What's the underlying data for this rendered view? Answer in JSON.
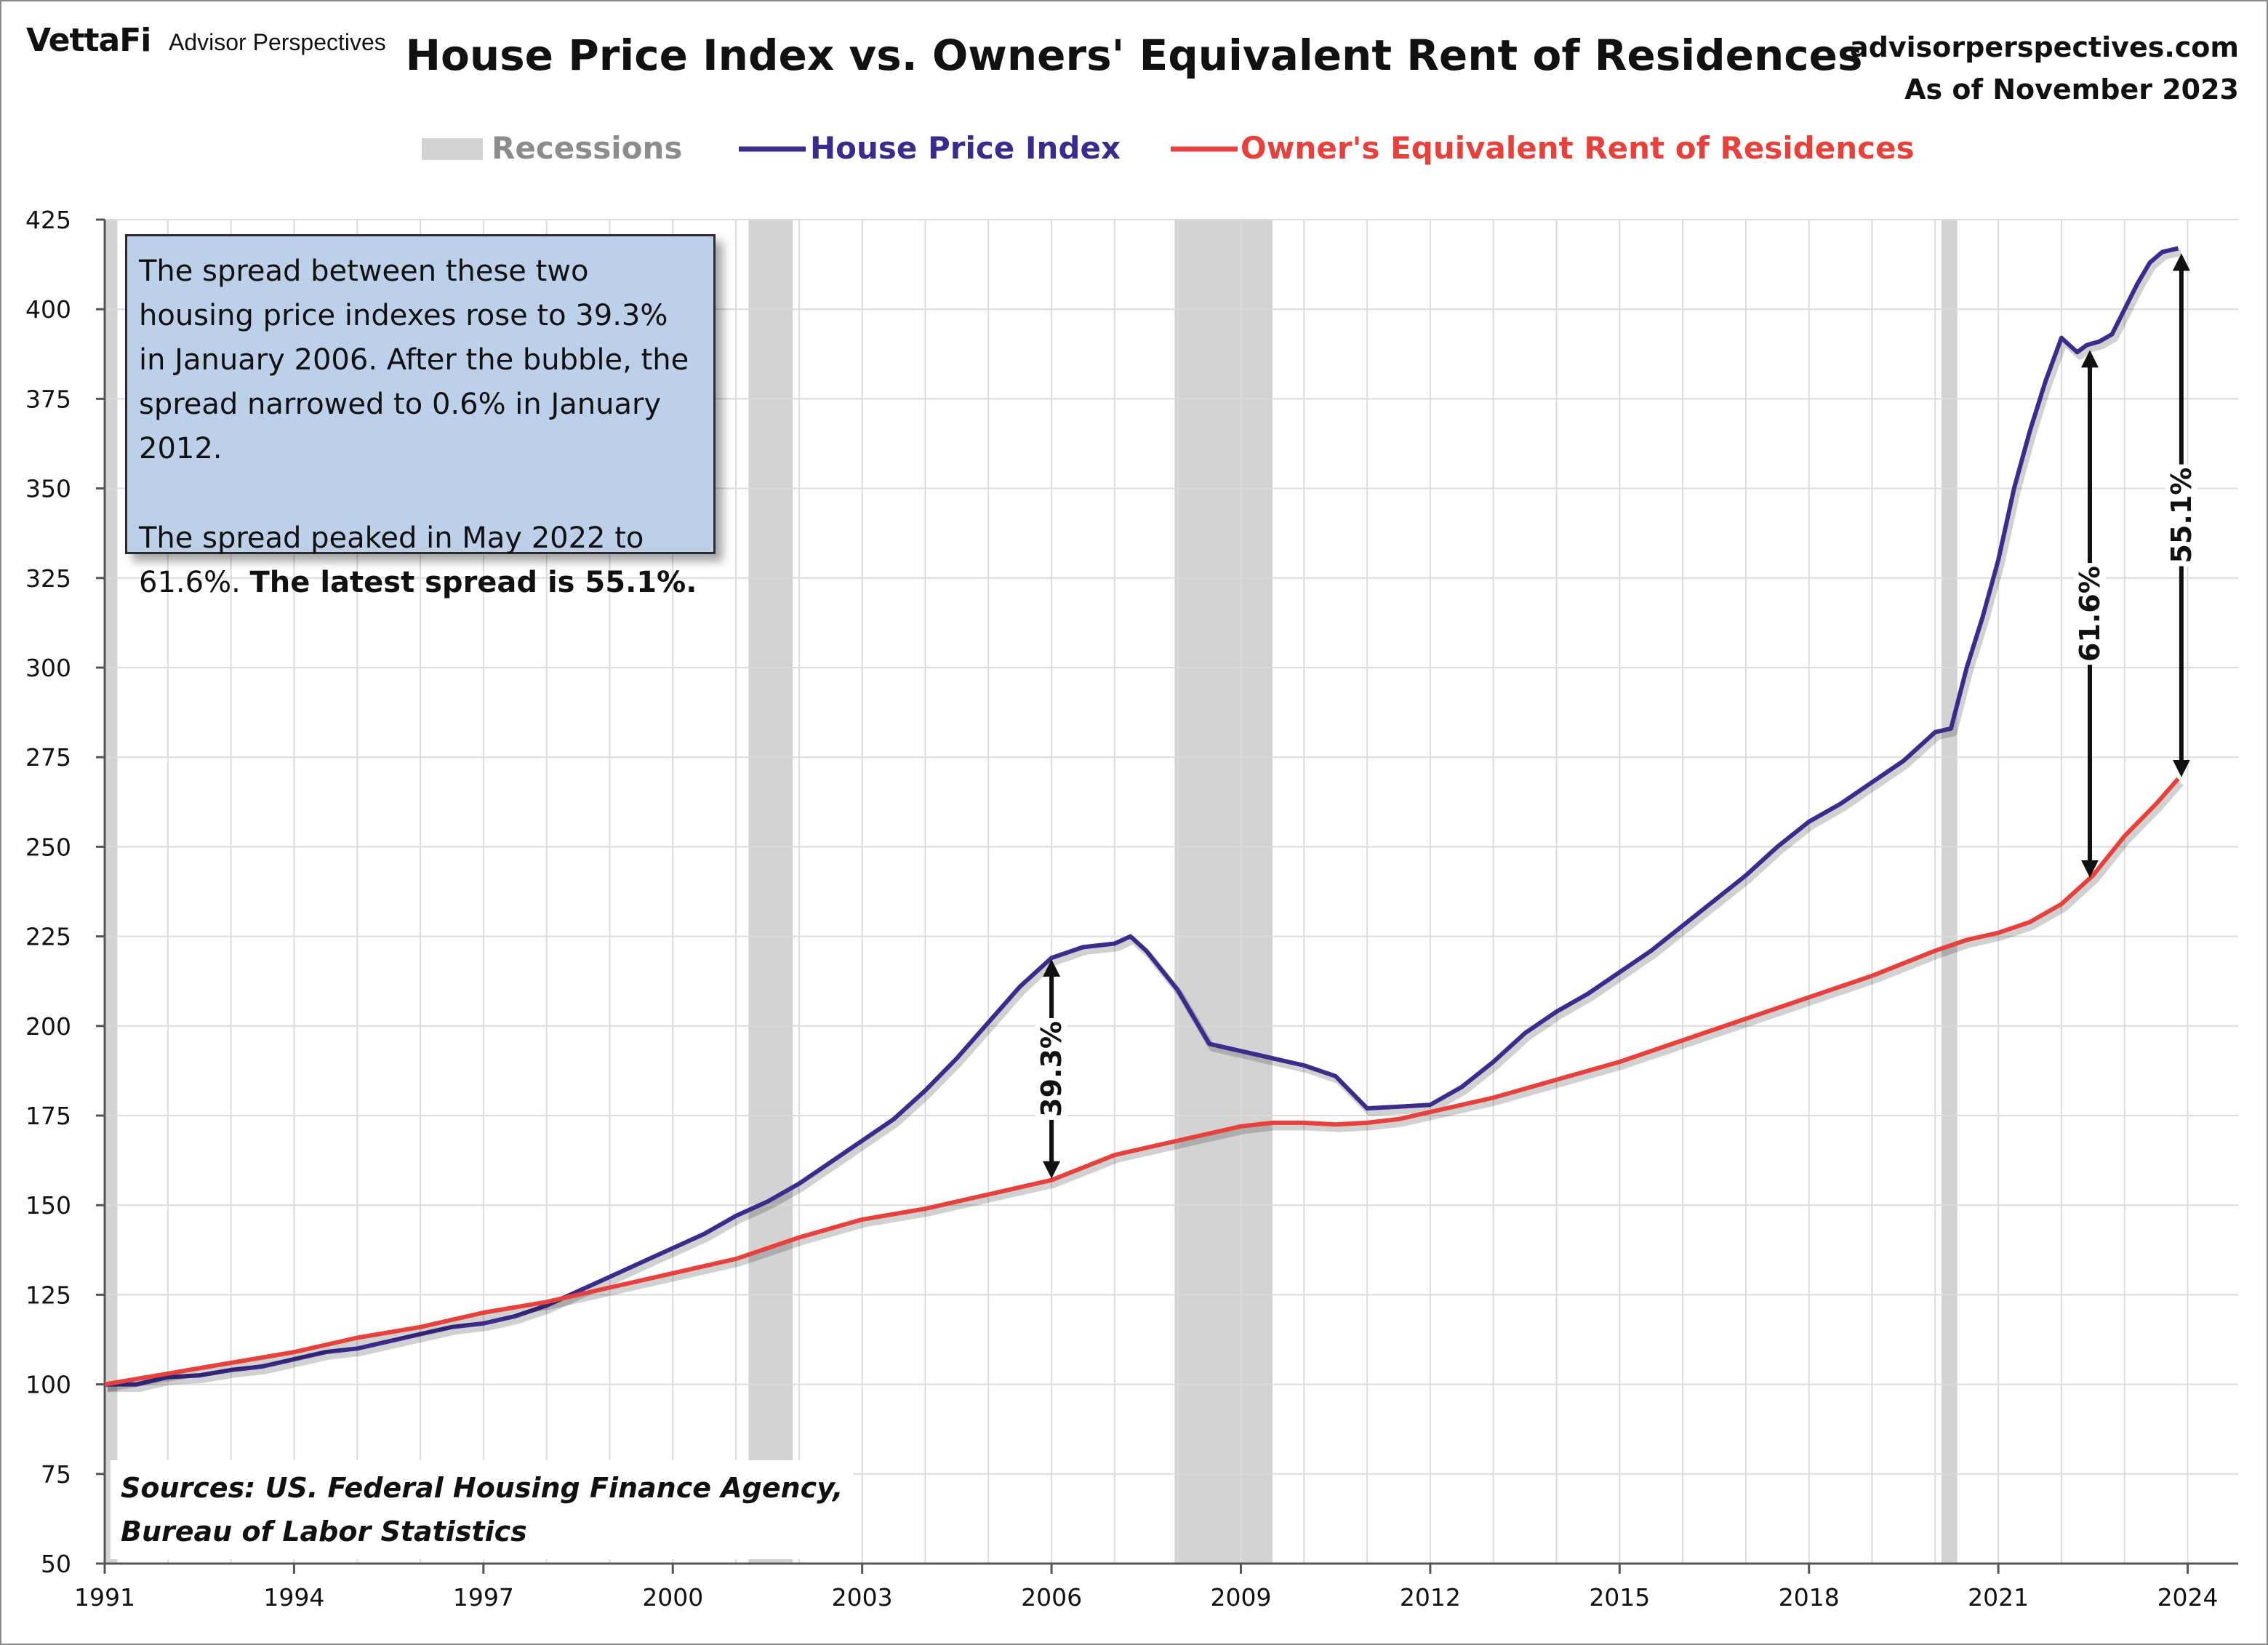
{
  "header": {
    "brand": "VettaFi",
    "brand_sub": "Advisor Perspectives",
    "title": "House Price Index vs. Owners' Equivalent Rent of Residences",
    "site": "advisorperspectives.com",
    "as_of": "As of November 2023"
  },
  "legend": {
    "recessions": "Recessions",
    "hpi": "House Price Index",
    "oer": "Owner's Equivalent Rent of Residences"
  },
  "colors": {
    "hpi": "#3b2b8c",
    "oer": "#e8413c",
    "recession": "#d3d3d3",
    "grid": "#dcdcdc",
    "annotation_bg": "#bdd0ea"
  },
  "annotation": {
    "line1": "The spread between these two housing price indexes rose to 39.3% in January 2006. After the bubble, the spread narrowed to 0.6% in January 2012.",
    "line2_plain": "The spread peaked in May 2022 to 61.6%. ",
    "line2_bold": "The latest spread is 55.1%."
  },
  "sources": {
    "line1": "Sources: US. Federal Housing Finance Agency,",
    "line2": "Bureau of Labor Statistics"
  },
  "chart_data": {
    "type": "line",
    "title": "House Price Index vs. Owners' Equivalent Rent of Residences",
    "xlabel": "",
    "ylabel": "",
    "xlim": [
      1991,
      2024.8
    ],
    "ylim": [
      50,
      425
    ],
    "x_ticks": [
      1991,
      1994,
      1997,
      2000,
      2003,
      2006,
      2009,
      2012,
      2015,
      2018,
      2021,
      2024
    ],
    "y_ticks": [
      50,
      75,
      100,
      125,
      150,
      175,
      200,
      225,
      250,
      275,
      300,
      325,
      350,
      375,
      400,
      425
    ],
    "recessions": [
      [
        1991.0,
        1991.2
      ],
      [
        2001.2,
        2001.9
      ],
      [
        2007.95,
        2009.5
      ],
      [
        2020.1,
        2020.35
      ]
    ],
    "series": [
      {
        "name": "House Price Index",
        "x": [
          1991.0,
          1991.5,
          1992.0,
          1992.5,
          1993.0,
          1993.5,
          1994.0,
          1994.5,
          1995.0,
          1995.5,
          1996.0,
          1996.5,
          1997.0,
          1997.5,
          1998.0,
          1998.5,
          1999.0,
          1999.5,
          2000.0,
          2000.5,
          2001.0,
          2001.5,
          2002.0,
          2002.5,
          2003.0,
          2003.5,
          2004.0,
          2004.5,
          2005.0,
          2005.5,
          2006.0,
          2006.5,
          2007.0,
          2007.25,
          2007.5,
          2008.0,
          2008.5,
          2009.0,
          2009.25,
          2009.5,
          2010.0,
          2010.5,
          2011.0,
          2011.5,
          2012.0,
          2012.5,
          2013.0,
          2013.5,
          2014.0,
          2014.5,
          2015.0,
          2015.5,
          2016.0,
          2016.5,
          2017.0,
          2017.5,
          2018.0,
          2018.5,
          2019.0,
          2019.5,
          2020.0,
          2020.25,
          2020.5,
          2020.75,
          2021.0,
          2021.25,
          2021.5,
          2021.75,
          2022.0,
          2022.25,
          2022.4,
          2022.6,
          2022.8,
          2023.0,
          2023.2,
          2023.4,
          2023.6,
          2023.85
        ],
        "values": [
          100,
          100,
          102,
          102.5,
          104,
          105,
          107,
          109,
          110,
          112,
          114,
          116,
          117,
          119,
          122,
          126,
          130,
          134,
          138,
          142,
          147,
          151,
          156,
          162,
          168,
          174,
          182,
          191,
          201,
          211,
          219,
          222,
          223,
          225,
          221,
          210,
          195,
          193,
          192,
          191,
          189,
          186,
          177,
          177.5,
          178,
          183,
          190,
          198,
          204,
          209,
          215,
          221,
          228,
          235,
          242,
          250,
          257,
          262,
          268,
          274,
          282,
          283,
          300,
          314,
          330,
          350,
          366,
          380,
          392,
          388,
          390,
          391,
          393,
          400,
          407,
          413,
          416,
          417
        ]
      },
      {
        "name": "Owner's Equivalent Rent of Residences",
        "x": [
          1991.0,
          1992.0,
          1993.0,
          1994.0,
          1995.0,
          1996.0,
          1997.0,
          1998.0,
          1999.0,
          2000.0,
          2001.0,
          2002.0,
          2003.0,
          2004.0,
          2005.0,
          2006.0,
          2007.0,
          2008.0,
          2009.0,
          2009.5,
          2010.0,
          2010.5,
          2011.0,
          2011.5,
          2012.0,
          2013.0,
          2014.0,
          2015.0,
          2016.0,
          2017.0,
          2018.0,
          2019.0,
          2020.0,
          2020.5,
          2021.0,
          2021.5,
          2022.0,
          2022.5,
          2023.0,
          2023.5,
          2023.85
        ],
        "values": [
          100,
          103,
          106,
          109,
          113,
          116,
          120,
          123,
          127,
          131,
          135,
          141,
          146,
          149,
          153,
          157,
          164,
          168,
          172,
          173,
          173,
          172.5,
          173,
          174,
          176,
          180,
          185,
          190,
          196,
          202,
          208,
          214,
          221,
          224,
          226,
          229,
          234,
          242,
          253,
          262,
          269
        ]
      }
    ],
    "spreads": [
      {
        "label": "39.3%",
        "x": 2006.0,
        "y_top": 219,
        "y_bottom": 157
      },
      {
        "label": "61.6%",
        "x": 2022.45,
        "y_top": 389,
        "y_bottom": 241
      },
      {
        "label": "55.1%",
        "x": 2023.9,
        "y_top": 416,
        "y_bottom": 269
      }
    ]
  }
}
